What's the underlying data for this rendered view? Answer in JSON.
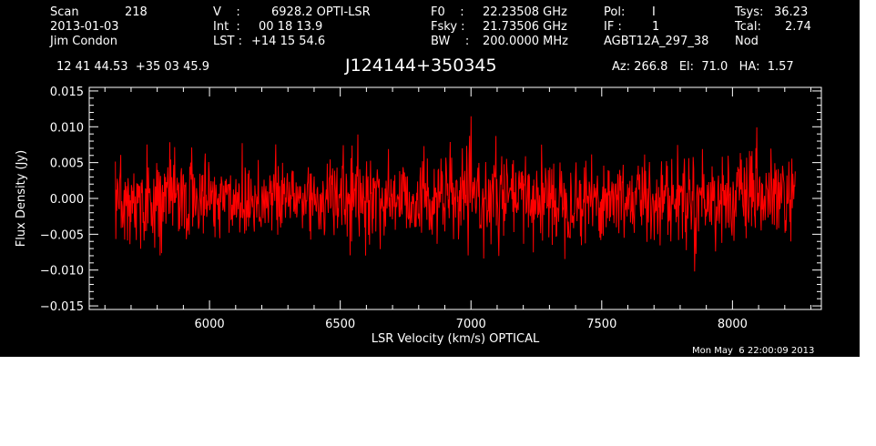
{
  "header": {
    "col1": {
      "scan_label": "Scan",
      "scan_value": "218",
      "date": "2013-01-03",
      "observer": "Jim Condon"
    },
    "col2": {
      "v_label": "V    :",
      "v_value": "6928.2 OPTI-LSR",
      "int_label": "Int  :",
      "int_value": "00 18 13.9",
      "lst_label": "LST :",
      "lst_value": "+14 15 54.6"
    },
    "col3": {
      "f0_label": "F0    :",
      "f0_value": "22.23508 GHz",
      "fsky_label": "Fsky :",
      "fsky_value": "21.73506 GHz",
      "bw_label": "BW    :",
      "bw_value": "200.0000 MHz"
    },
    "col4": {
      "pol_label": "Pol:",
      "pol_value": "I",
      "if_label": "IF :",
      "if_value": "1",
      "project": "AGBT12A_297_38"
    },
    "col5": {
      "tsys_label": "Tsys:",
      "tsys_value": "36.23",
      "tcal_label": "Tcal:",
      "tcal_value": "2.74",
      "mode": "Nod"
    },
    "coords": "12 41 44.53  +35 03 45.9",
    "source": "J124144+350345",
    "pointing": "Az: 266.8   El:  71.0   HA:  1.57",
    "timestamp": "Mon May  6 22:00:09 2013"
  },
  "chart_data": {
    "type": "line",
    "xlabel": "LSR Velocity (km/s) OPTICAL",
    "ylabel": "Flux Density (Jy)",
    "xlim": [
      5540,
      8340
    ],
    "ylim": [
      -0.0155,
      0.0155
    ],
    "x_ticks": [
      6000,
      6500,
      7000,
      7500,
      8000
    ],
    "x_tick_labels": [
      "6000",
      "6500",
      "7000",
      "7500",
      "8000"
    ],
    "y_ticks": [
      -0.015,
      -0.01,
      -0.005,
      0.0,
      0.005,
      0.01,
      0.015
    ],
    "y_tick_labels": [
      "−0.015",
      "−0.010",
      "−0.005",
      "0.000",
      "0.005",
      "0.010",
      "0.015"
    ],
    "grid": false,
    "series": [
      {
        "color": "#ff0000",
        "x_start": 5640,
        "x_end": 8240,
        "rms": 0.003,
        "points": 1400,
        "noise_seed": 218,
        "sample_values": [
          0.0021,
          -0.0048,
          0.0067,
          -0.0012,
          0.0035,
          -0.0071,
          0.0009,
          0.0052,
          -0.0029,
          0.0104,
          -0.0095,
          0.0018
        ]
      }
    ]
  }
}
